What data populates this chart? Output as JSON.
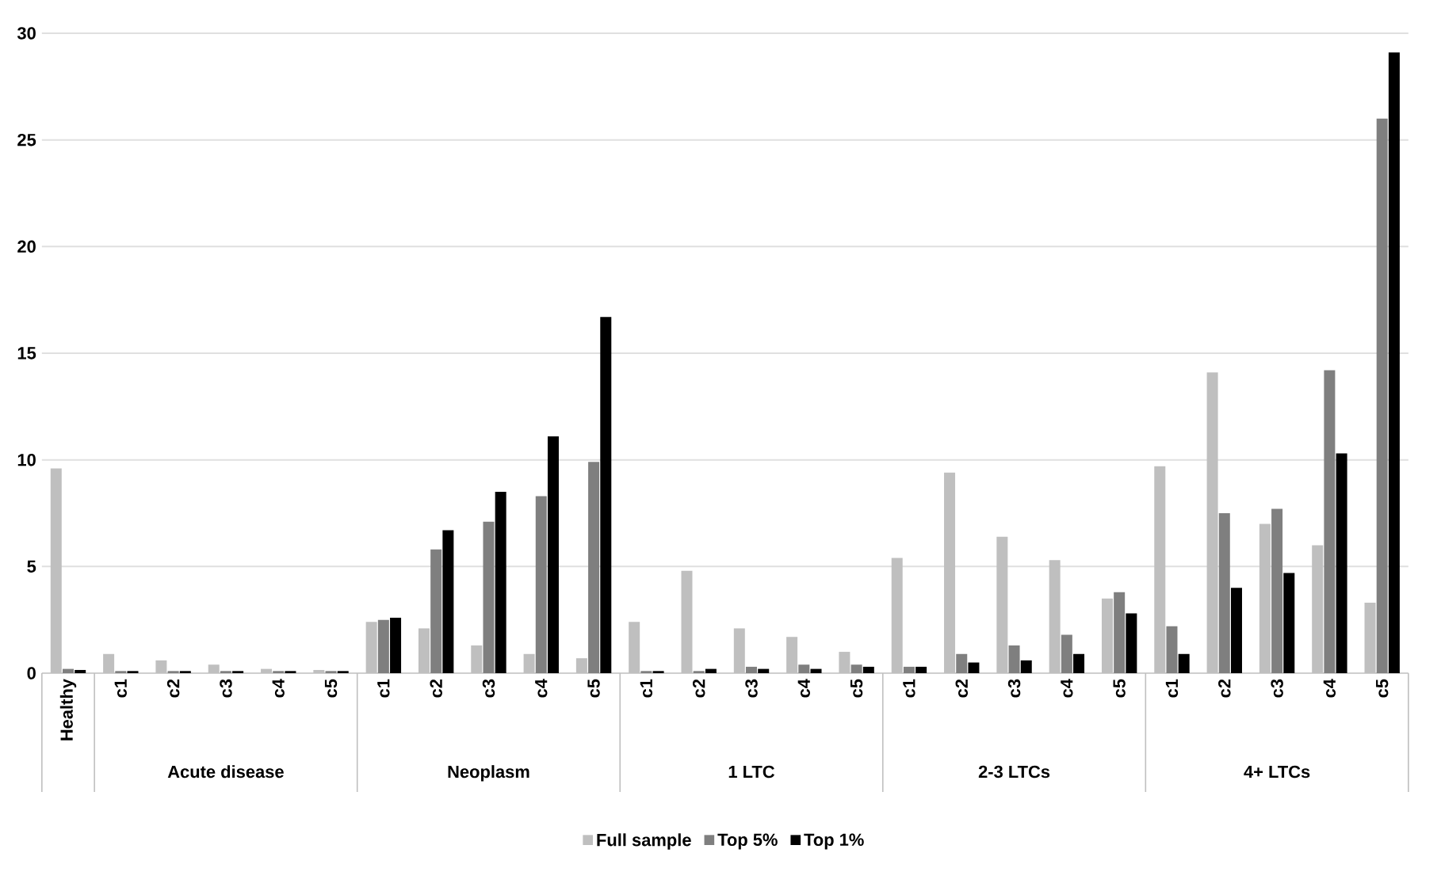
{
  "chart_data": {
    "type": "bar",
    "categories": [
      "Healthy",
      "c1",
      "c2",
      "c3",
      "c4",
      "c5",
      "c1",
      "c2",
      "c3",
      "c4",
      "c5",
      "c1",
      "c2",
      "c3",
      "c4",
      "c5",
      "c1",
      "c2",
      "c3",
      "c4",
      "c5",
      "c1",
      "c2",
      "c3",
      "c4",
      "c5"
    ],
    "series": [
      {
        "name": "Full sample",
        "color": "#bfbfbf",
        "values": [
          9.6,
          0.9,
          0.6,
          0.4,
          0.2,
          0.15,
          2.4,
          2.1,
          1.3,
          0.9,
          0.7,
          2.4,
          4.8,
          2.1,
          1.7,
          1.0,
          5.4,
          9.4,
          6.4,
          5.3,
          3.5,
          9.7,
          14.1,
          7.0,
          6.0,
          3.3
        ]
      },
      {
        "name": "Top 5%",
        "color": "#7f7f7f",
        "values": [
          0.2,
          0.1,
          0.1,
          0.1,
          0.1,
          0.1,
          2.5,
          5.8,
          7.1,
          8.3,
          9.9,
          0.1,
          0.1,
          0.3,
          0.4,
          0.4,
          0.3,
          0.9,
          1.3,
          1.8,
          3.8,
          2.2,
          7.5,
          7.7,
          14.2,
          26.0
        ]
      },
      {
        "name": "Top 1%",
        "color": "#000000",
        "values": [
          0.15,
          0.1,
          0.1,
          0.1,
          0.1,
          0.1,
          2.6,
          6.7,
          8.5,
          11.1,
          16.7,
          0.1,
          0.2,
          0.2,
          0.2,
          0.3,
          0.3,
          0.5,
          0.6,
          0.9,
          2.8,
          0.9,
          4.0,
          4.7,
          10.3,
          29.1
        ]
      }
    ],
    "annotations": [
      "Acute disease",
      "Neoplasm",
      "1 LTC",
      "2-3 LTCs",
      "4+ LTCs"
    ],
    "ylim": [
      0,
      30
    ],
    "yticks": [
      0,
      5,
      10,
      15,
      20,
      25,
      30
    ],
    "grid": "y",
    "legend": "bottom"
  }
}
